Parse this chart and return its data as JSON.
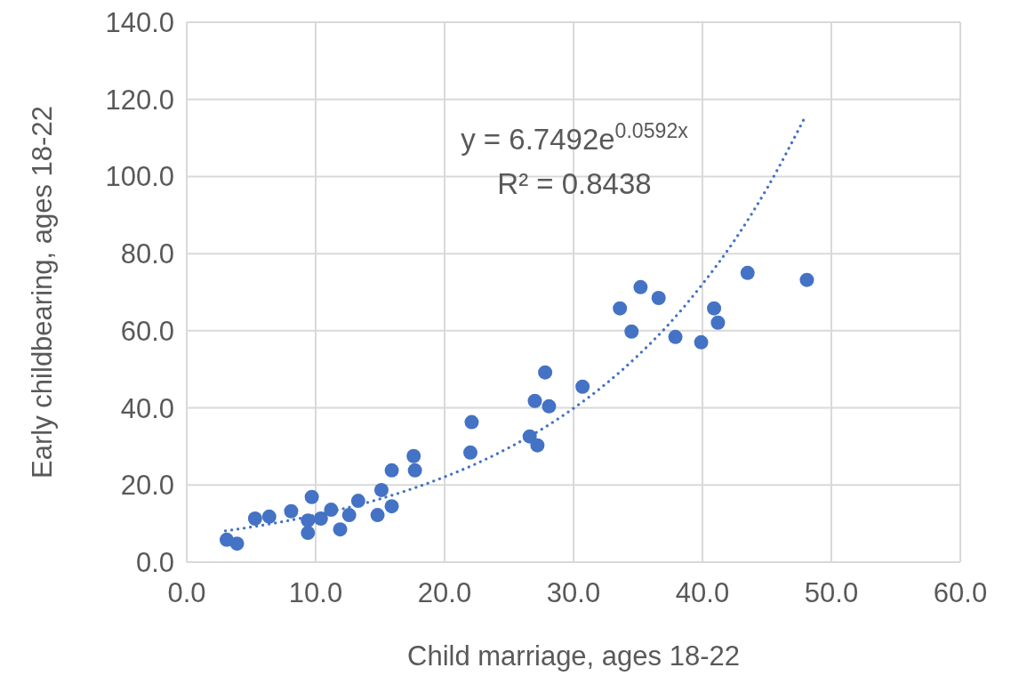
{
  "chart_data": {
    "type": "scatter",
    "xlabel": "Child marriage, ages 18-22",
    "ylabel": "Early childbearing, ages 18-22",
    "xlim": [
      0,
      60
    ],
    "ylim": [
      0,
      140
    ],
    "xticks": [
      {
        "value": 0,
        "label": "0.0"
      },
      {
        "value": 10,
        "label": "10.0"
      },
      {
        "value": 20,
        "label": "20.0"
      },
      {
        "value": 30,
        "label": "30.0"
      },
      {
        "value": 40,
        "label": "40.0"
      },
      {
        "value": 50,
        "label": "50.0"
      },
      {
        "value": 60,
        "label": "60.0"
      }
    ],
    "yticks": [
      {
        "value": 0,
        "label": "0.0"
      },
      {
        "value": 20,
        "label": "20.0"
      },
      {
        "value": 40,
        "label": "40.0"
      },
      {
        "value": 60,
        "label": "60.0"
      },
      {
        "value": 80,
        "label": "80.0"
      },
      {
        "value": 100,
        "label": "100.0"
      },
      {
        "value": 120,
        "label": "120.0"
      },
      {
        "value": 140,
        "label": "140.0"
      }
    ],
    "grid": true,
    "annotations": [
      "y = 6.7492e$^{0.0592x}$",
      "R² = 0.8438"
    ],
    "series": [
      {
        "color": "#4472c4",
        "marker": "circle",
        "x": [
          3.1,
          3.9,
          5.3,
          6.4,
          8.1,
          9.7,
          9.4,
          9.4,
          10.4,
          11.2,
          11.9,
          12.6,
          13.3,
          14.8,
          15.1,
          15.9,
          15.9,
          17.6,
          17.7,
          22.0,
          22.1,
          26.6,
          27.0,
          27.2,
          27.8,
          28.1,
          30.7,
          33.6,
          34.5,
          35.2,
          36.6,
          37.9,
          39.9,
          40.9,
          41.2,
          43.5,
          48.1
        ],
        "values": [
          5.8,
          4.8,
          11.3,
          11.8,
          13.2,
          16.9,
          10.8,
          7.6,
          11.3,
          13.6,
          8.5,
          12.2,
          15.9,
          12.2,
          18.7,
          14.5,
          23.8,
          27.5,
          23.8,
          28.4,
          36.3,
          32.6,
          41.8,
          30.3,
          49.2,
          40.4,
          45.5,
          65.8,
          59.8,
          71.3,
          68.5,
          58.4,
          57.0,
          65.8,
          62.1,
          75.0,
          73.2
        ]
      },
      {
        "type": "line",
        "color": "#4472c4",
        "line_style": "dotted",
        "x": [
          3,
          5,
          10,
          15,
          20,
          22.5,
          25,
          27.5,
          30,
          32.5,
          35,
          37.5,
          40,
          42.5,
          45,
          48
        ],
        "values": [
          8.1,
          9.1,
          12.2,
          16.4,
          22.1,
          25.6,
          29.7,
          34.4,
          39.9,
          46.2,
          53.6,
          62.1,
          72.1,
          83.5,
          96.9,
          115.7
        ]
      }
    ]
  }
}
